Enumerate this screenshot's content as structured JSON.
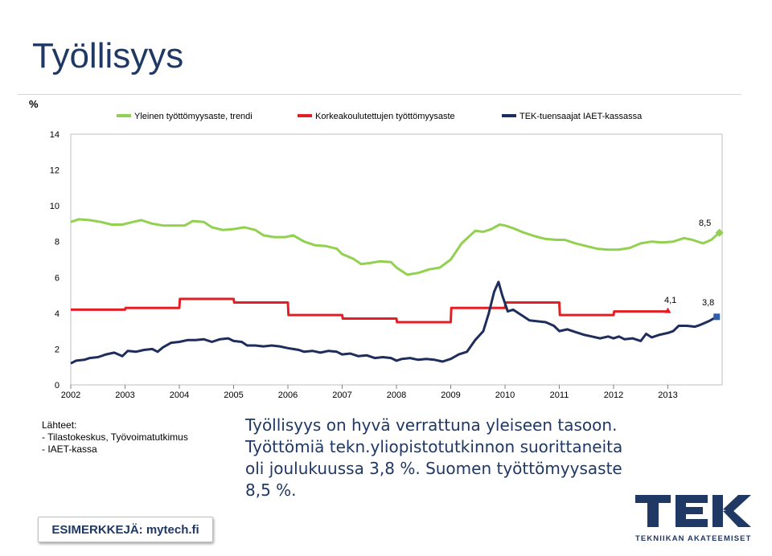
{
  "slide": {
    "title": "Työllisyys",
    "sources": [
      "Lähteet:",
      "- Tilastokeskus, Työvoimatutkimus",
      "- IAET-kassa"
    ],
    "summary": "Työllisyys on hyvä verrattuna yleiseen tasoon. Työttömiä tekn.yliopistotutkinnon suorittaneita oli joulukuussa 3,8 %. Suomen työttömyysaste 8,5 %.",
    "example_button": "ESIMERKKEJÄ: mytech.fi",
    "logo": {
      "text": "TEK",
      "tagline": "TEKNIIKAN AKATEEMISET",
      "color": "#1f3864"
    }
  },
  "chart_data": {
    "type": "line",
    "ylabel": "%",
    "ylim": [
      0,
      14
    ],
    "yticks": [
      0,
      2,
      4,
      6,
      8,
      10,
      12,
      14
    ],
    "xlim": [
      2002,
      2014
    ],
    "xticks": [
      "2002",
      "2003",
      "2004",
      "2005",
      "2006",
      "2007",
      "2008",
      "2009",
      "2010",
      "2011",
      "2012",
      "2013"
    ],
    "grid": false,
    "legend": "top",
    "series": [
      {
        "name": "Yleinen työttömyysaste, trendi",
        "color": "#92d050",
        "points": [
          [
            2002.0,
            9.1
          ],
          [
            2002.15,
            9.25
          ],
          [
            2002.35,
            9.2
          ],
          [
            2002.55,
            9.1
          ],
          [
            2002.75,
            8.95
          ],
          [
            2002.95,
            8.95
          ],
          [
            2003.15,
            9.1
          ],
          [
            2003.3,
            9.2
          ],
          [
            2003.5,
            9.0
          ],
          [
            2003.7,
            8.9
          ],
          [
            2003.9,
            8.9
          ],
          [
            2004.1,
            8.9
          ],
          [
            2004.25,
            9.15
          ],
          [
            2004.45,
            9.1
          ],
          [
            2004.6,
            8.8
          ],
          [
            2004.8,
            8.65
          ],
          [
            2005.0,
            8.7
          ],
          [
            2005.2,
            8.8
          ],
          [
            2005.4,
            8.65
          ],
          [
            2005.55,
            8.35
          ],
          [
            2005.75,
            8.25
          ],
          [
            2005.95,
            8.25
          ],
          [
            2006.1,
            8.35
          ],
          [
            2006.3,
            8.0
          ],
          [
            2006.5,
            7.8
          ],
          [
            2006.7,
            7.75
          ],
          [
            2006.9,
            7.6
          ],
          [
            2007.0,
            7.3
          ],
          [
            2007.2,
            7.05
          ],
          [
            2007.35,
            6.75
          ],
          [
            2007.5,
            6.8
          ],
          [
            2007.7,
            6.9
          ],
          [
            2007.9,
            6.85
          ],
          [
            2008.0,
            6.55
          ],
          [
            2008.2,
            6.15
          ],
          [
            2008.4,
            6.25
          ],
          [
            2008.6,
            6.45
          ],
          [
            2008.8,
            6.55
          ],
          [
            2009.0,
            7.0
          ],
          [
            2009.2,
            7.9
          ],
          [
            2009.45,
            8.6
          ],
          [
            2009.6,
            8.55
          ],
          [
            2009.75,
            8.7
          ],
          [
            2009.9,
            8.95
          ],
          [
            2010.0,
            8.9
          ],
          [
            2010.15,
            8.75
          ],
          [
            2010.35,
            8.5
          ],
          [
            2010.55,
            8.3
          ],
          [
            2010.75,
            8.15
          ],
          [
            2010.95,
            8.1
          ],
          [
            2011.1,
            8.1
          ],
          [
            2011.3,
            7.9
          ],
          [
            2011.5,
            7.75
          ],
          [
            2011.7,
            7.6
          ],
          [
            2011.9,
            7.55
          ],
          [
            2012.1,
            7.55
          ],
          [
            2012.3,
            7.65
          ],
          [
            2012.5,
            7.9
          ],
          [
            2012.7,
            8.0
          ],
          [
            2012.9,
            7.95
          ],
          [
            2013.1,
            8.0
          ],
          [
            2013.3,
            8.2
          ],
          [
            2013.45,
            8.1
          ],
          [
            2013.65,
            7.9
          ],
          [
            2013.8,
            8.1
          ],
          [
            2013.95,
            8.5
          ]
        ]
      },
      {
        "name": "Korkeakoulutettujen työttömyysaste",
        "color": "#e31e24",
        "points": [
          [
            2002.0,
            4.2
          ],
          [
            2003.0,
            4.2
          ],
          [
            2003.01,
            4.3
          ],
          [
            2004.0,
            4.3
          ],
          [
            2004.01,
            4.8
          ],
          [
            2005.0,
            4.8
          ],
          [
            2005.01,
            4.6
          ],
          [
            2006.0,
            4.6
          ],
          [
            2006.01,
            3.9
          ],
          [
            2007.0,
            3.9
          ],
          [
            2007.01,
            3.7
          ],
          [
            2008.0,
            3.7
          ],
          [
            2008.01,
            3.5
          ],
          [
            2009.0,
            3.5
          ],
          [
            2009.01,
            4.3
          ],
          [
            2010.0,
            4.3
          ],
          [
            2010.01,
            4.6
          ],
          [
            2011.0,
            4.6
          ],
          [
            2011.01,
            3.9
          ],
          [
            2012.0,
            3.9
          ],
          [
            2012.01,
            4.1
          ],
          [
            2013.0,
            4.1
          ]
        ],
        "end_label": "4,1"
      },
      {
        "name": "TEK-tuensaajat IAET-kassassa",
        "color": "#1f2d5c",
        "points": [
          [
            2002.0,
            1.2
          ],
          [
            2002.1,
            1.35
          ],
          [
            2002.25,
            1.4
          ],
          [
            2002.35,
            1.5
          ],
          [
            2002.5,
            1.55
          ],
          [
            2002.65,
            1.7
          ],
          [
            2002.8,
            1.8
          ],
          [
            2002.95,
            1.6
          ],
          [
            2003.05,
            1.9
          ],
          [
            2003.2,
            1.85
          ],
          [
            2003.35,
            1.95
          ],
          [
            2003.5,
            2.0
          ],
          [
            2003.6,
            1.85
          ],
          [
            2003.7,
            2.1
          ],
          [
            2003.85,
            2.35
          ],
          [
            2004.0,
            2.4
          ],
          [
            2004.15,
            2.5
          ],
          [
            2004.3,
            2.5
          ],
          [
            2004.45,
            2.55
          ],
          [
            2004.6,
            2.4
          ],
          [
            2004.75,
            2.55
          ],
          [
            2004.9,
            2.6
          ],
          [
            2005.0,
            2.45
          ],
          [
            2005.15,
            2.4
          ],
          [
            2005.25,
            2.2
          ],
          [
            2005.4,
            2.2
          ],
          [
            2005.55,
            2.15
          ],
          [
            2005.7,
            2.2
          ],
          [
            2005.85,
            2.15
          ],
          [
            2006.0,
            2.05
          ],
          [
            2006.1,
            2.0
          ],
          [
            2006.2,
            1.95
          ],
          [
            2006.3,
            1.85
          ],
          [
            2006.45,
            1.9
          ],
          [
            2006.6,
            1.8
          ],
          [
            2006.75,
            1.9
          ],
          [
            2006.9,
            1.85
          ],
          [
            2007.0,
            1.7
          ],
          [
            2007.15,
            1.75
          ],
          [
            2007.3,
            1.6
          ],
          [
            2007.45,
            1.65
          ],
          [
            2007.6,
            1.5
          ],
          [
            2007.75,
            1.55
          ],
          [
            2007.9,
            1.5
          ],
          [
            2008.0,
            1.35
          ],
          [
            2008.1,
            1.45
          ],
          [
            2008.25,
            1.5
          ],
          [
            2008.4,
            1.4
          ],
          [
            2008.55,
            1.45
          ],
          [
            2008.7,
            1.4
          ],
          [
            2008.85,
            1.3
          ],
          [
            2009.0,
            1.45
          ],
          [
            2009.15,
            1.7
          ],
          [
            2009.3,
            1.85
          ],
          [
            2009.45,
            2.5
          ],
          [
            2009.6,
            3.0
          ],
          [
            2009.7,
            4.0
          ],
          [
            2009.8,
            5.2
          ],
          [
            2009.88,
            5.75
          ],
          [
            2009.95,
            5.0
          ],
          [
            2010.05,
            4.1
          ],
          [
            2010.15,
            4.2
          ],
          [
            2010.25,
            4.0
          ],
          [
            2010.35,
            3.8
          ],
          [
            2010.45,
            3.6
          ],
          [
            2010.6,
            3.55
          ],
          [
            2010.75,
            3.5
          ],
          [
            2010.9,
            3.3
          ],
          [
            2011.0,
            3.0
          ],
          [
            2011.15,
            3.1
          ],
          [
            2011.3,
            2.95
          ],
          [
            2011.45,
            2.8
          ],
          [
            2011.6,
            2.7
          ],
          [
            2011.75,
            2.6
          ],
          [
            2011.9,
            2.7
          ],
          [
            2012.0,
            2.6
          ],
          [
            2012.1,
            2.7
          ],
          [
            2012.2,
            2.55
          ],
          [
            2012.35,
            2.6
          ],
          [
            2012.5,
            2.45
          ],
          [
            2012.6,
            2.85
          ],
          [
            2012.7,
            2.65
          ],
          [
            2012.85,
            2.8
          ],
          [
            2013.0,
            2.9
          ],
          [
            2013.1,
            3.0
          ],
          [
            2013.2,
            3.3
          ],
          [
            2013.35,
            3.3
          ],
          [
            2013.5,
            3.25
          ],
          [
            2013.6,
            3.35
          ],
          [
            2013.75,
            3.55
          ],
          [
            2013.9,
            3.8
          ]
        ],
        "end_label": "3,8"
      }
    ],
    "annotations": [
      "8,5",
      "4,1",
      "3,8"
    ]
  }
}
